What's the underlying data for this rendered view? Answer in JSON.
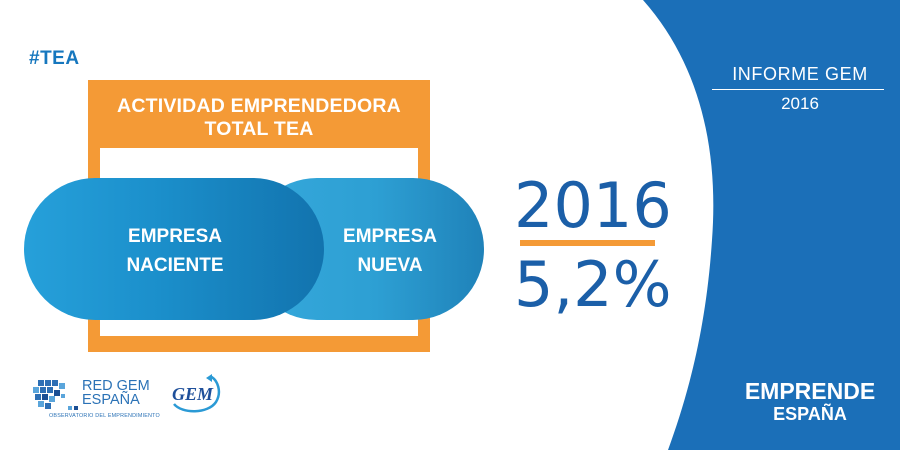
{
  "hashtag": "#TEA",
  "frame_title": "ACTIVIDAD EMPRENDEDORA TOTAL TEA",
  "pill_left": {
    "line1": "EMPRESA",
    "line2": "NACIENTE"
  },
  "pill_right": {
    "line1": "EMPRESA",
    "line2": "NUEVA"
  },
  "stat": {
    "year": "2016",
    "value": "5,2%"
  },
  "report": {
    "title": "INFORME GEM",
    "year": "2016"
  },
  "brand": {
    "line1": "EMPRENDE",
    "line2": "ESPAÑA"
  },
  "logos": {
    "redgem_line1": "RED GEM",
    "redgem_line2": "ESPAÑA",
    "redgem_sub": "OBSERVATORIO DEL EMPRENDIMIENTO",
    "gem": "GEM"
  },
  "colors": {
    "accent_orange": "#f49a36",
    "primary_blue": "#1b6fb8",
    "light_blue": "#2d9fd3",
    "text_blue": "#1b5fa8"
  }
}
